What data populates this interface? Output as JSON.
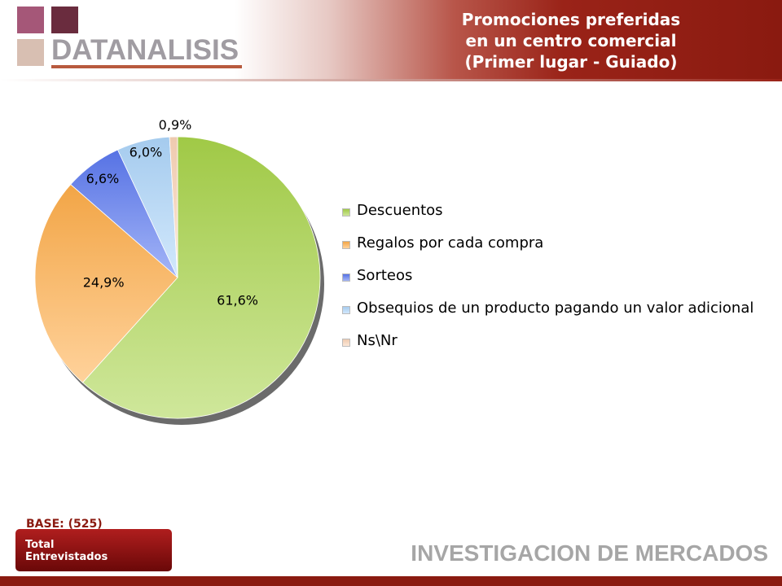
{
  "brand": {
    "logo_text": "DATANALISIS",
    "footer_text": "INVESTIGACION DE MERCADOS",
    "colors": {
      "header_dark": "#8a1a10",
      "logo_text": "#a09ca2",
      "footer_text": "#a6a6a6"
    }
  },
  "base": {
    "label": "BASE: (525)",
    "box_line1": "Total",
    "box_line2": "Entrevistados"
  },
  "chart_data": {
    "type": "pie",
    "title": [
      "Promociones preferidas",
      "en un centro comercial",
      "(Primer lugar - Guiado)"
    ],
    "legend_position": "right",
    "slices": [
      {
        "label": "Descuentos",
        "value": 61.6,
        "display": "61,6%",
        "color": "#a8d44a"
      },
      {
        "label": "Regalos por cada compra",
        "value": 24.9,
        "display": "24,9%",
        "color": "#ffae4a"
      },
      {
        "label": "Sorteos",
        "value": 6.6,
        "display": "6,6%",
        "color": "#5a78f0"
      },
      {
        "label": "Obsequios de un producto pagando un valor adicional",
        "value": 6.0,
        "display": "6,0%",
        "color": "#aed6fa"
      },
      {
        "label": "Ns\\Nr",
        "value": 0.9,
        "display": "0,9%",
        "color": "#fbd5b8"
      }
    ]
  }
}
